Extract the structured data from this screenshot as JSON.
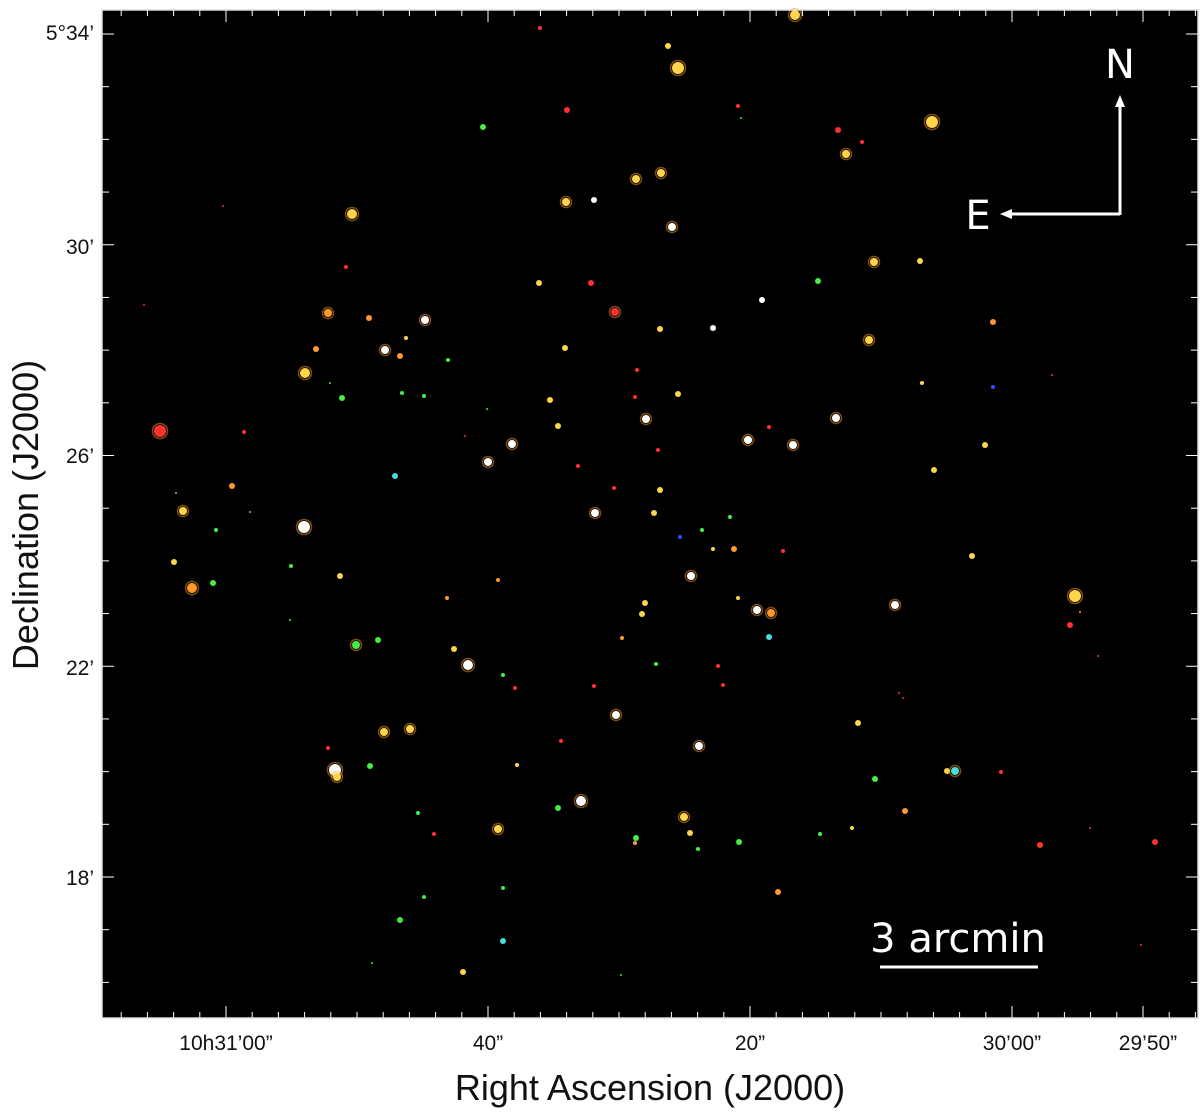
{
  "figure": {
    "x_axis_title": "Right Ascension (J2000)",
    "y_axis_title": "Declination (J2000)",
    "x_tick_labels": [
      "10h31’00”",
      "40”",
      "20”",
      "30’00”",
      "29’50”"
    ],
    "y_tick_labels": [
      "5°34’",
      "30’",
      "26’",
      "22’",
      "18’"
    ],
    "compass": {
      "north": "N",
      "east": "E"
    },
    "scale_bar": {
      "label": "3 arcmin"
    },
    "colors": {
      "sky": "#000000",
      "frame": "#ffffff",
      "stars": [
        "#ffd54a",
        "#ffffff",
        "#ff3030",
        "#44ee44",
        "#ff9a2a",
        "#44dddd",
        "#3050ff"
      ]
    }
  }
}
